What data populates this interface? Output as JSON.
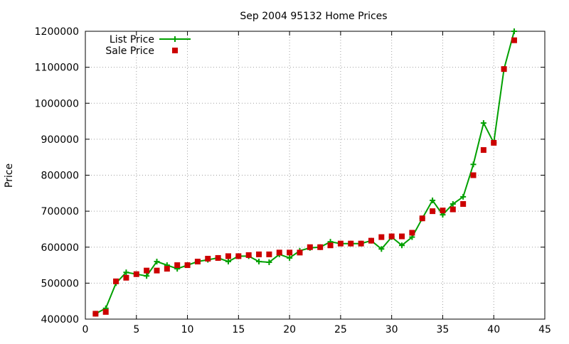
{
  "chart_data": {
    "type": "line",
    "title": "Sep 2004 95132 Home Prices",
    "xlabel": "",
    "ylabel": "Price",
    "xlim": [
      0,
      45
    ],
    "ylim": [
      400000,
      1200000
    ],
    "x_ticks": [
      "0",
      "5",
      "10",
      "15",
      "20",
      "25",
      "30",
      "35",
      "40",
      "45"
    ],
    "y_ticks": [
      "400000",
      "500000",
      "600000",
      "700000",
      "800000",
      "900000",
      "1000000",
      "1100000",
      "1200000"
    ],
    "grid": true,
    "legend_position": "top-left",
    "x": [
      1,
      2,
      3,
      4,
      5,
      6,
      7,
      8,
      9,
      10,
      11,
      12,
      13,
      14,
      15,
      16,
      17,
      18,
      19,
      20,
      21,
      22,
      23,
      24,
      25,
      26,
      27,
      28,
      29,
      30,
      31,
      32,
      33,
      34,
      35,
      36,
      37,
      38,
      39,
      40,
      41,
      42
    ],
    "series": [
      {
        "name": "List Price",
        "style": "linespoints",
        "color": "#00a000",
        "values": [
          415000,
          430000,
          500000,
          530000,
          525000,
          520000,
          560000,
          550000,
          540000,
          550000,
          560000,
          565000,
          570000,
          560000,
          575000,
          575000,
          560000,
          558000,
          580000,
          570000,
          590000,
          598000,
          600000,
          615000,
          610000,
          610000,
          610000,
          618000,
          595000,
          628000,
          605000,
          628000,
          680000,
          730000,
          690000,
          720000,
          740000,
          830000,
          945000,
          890000,
          1095000,
          1200000
        ]
      },
      {
        "name": "Sale Price",
        "style": "points",
        "color": "#cc0000",
        "values": [
          415000,
          420000,
          505000,
          515000,
          525000,
          535000,
          535000,
          540000,
          550000,
          550000,
          560000,
          568000,
          570000,
          575000,
          575000,
          578000,
          580000,
          580000,
          585000,
          585000,
          585000,
          600000,
          600000,
          605000,
          610000,
          610000,
          610000,
          618000,
          628000,
          630000,
          630000,
          640000,
          680000,
          700000,
          702000,
          705000,
          720000,
          800000,
          870000,
          890000,
          1095000,
          1175000
        ]
      }
    ]
  }
}
